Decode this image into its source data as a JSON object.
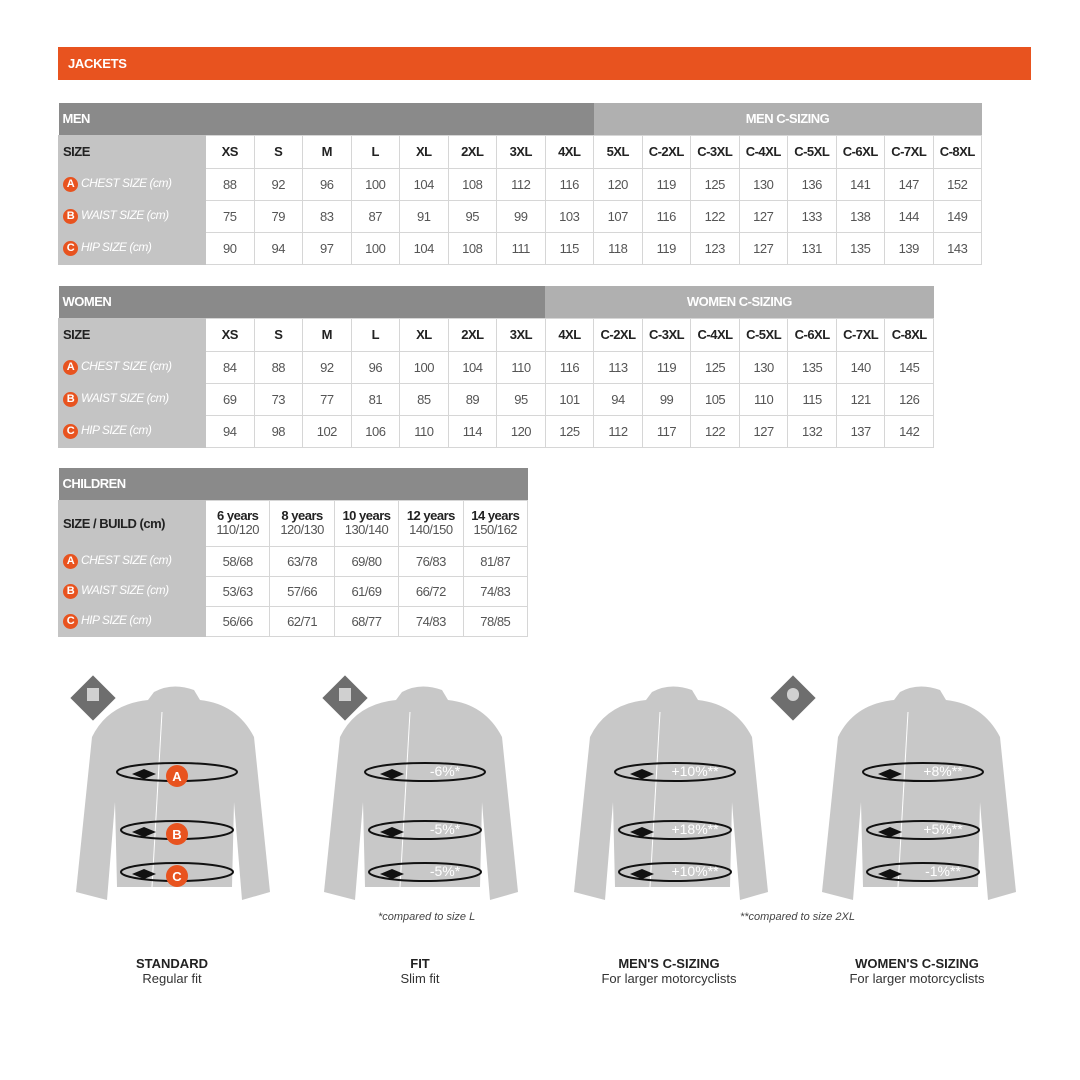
{
  "title": "JACKETS",
  "colors": {
    "accent": "#e8531f",
    "header_dark": "#8a8a8a",
    "header_light": "#b0b0b0",
    "label_bg": "#c4c4c4",
    "jacket": "#c8c8c8"
  },
  "row_labels": {
    "size": "SIZE",
    "chest": "CHEST SIZE (cm)",
    "waist": "WAIST SIZE (cm)",
    "hip": "HIP SIZE (cm)",
    "a": "A",
    "b": "B",
    "c": "C"
  },
  "men": {
    "title": "MEN",
    "c_title": "MEN C-SIZING",
    "sizes": [
      "XS",
      "S",
      "M",
      "L",
      "XL",
      "2XL",
      "3XL",
      "4XL",
      "5XL",
      "C-2XL",
      "C-3XL",
      "C-4XL",
      "C-5XL",
      "C-6XL",
      "C-7XL",
      "C-8XL"
    ],
    "chest": [
      "88",
      "92",
      "96",
      "100",
      "104",
      "108",
      "112",
      "116",
      "120",
      "119",
      "125",
      "130",
      "136",
      "141",
      "147",
      "152"
    ],
    "waist": [
      "75",
      "79",
      "83",
      "87",
      "91",
      "95",
      "99",
      "103",
      "107",
      "116",
      "122",
      "127",
      "133",
      "138",
      "144",
      "149"
    ],
    "hip": [
      "90",
      "94",
      "97",
      "100",
      "104",
      "108",
      "111",
      "115",
      "118",
      "119",
      "123",
      "127",
      "131",
      "135",
      "139",
      "143"
    ]
  },
  "women": {
    "title": "WOMEN",
    "c_title": "WOMEN C-SIZING",
    "sizes": [
      "XS",
      "S",
      "M",
      "L",
      "XL",
      "2XL",
      "3XL",
      "4XL",
      "C-2XL",
      "C-3XL",
      "C-4XL",
      "C-5XL",
      "C-6XL",
      "C-7XL",
      "C-8XL"
    ],
    "chest": [
      "84",
      "88",
      "92",
      "96",
      "100",
      "104",
      "110",
      "116",
      "113",
      "119",
      "125",
      "130",
      "135",
      "140",
      "145"
    ],
    "waist": [
      "69",
      "73",
      "77",
      "81",
      "85",
      "89",
      "95",
      "101",
      "94",
      "99",
      "105",
      "110",
      "115",
      "121",
      "126"
    ],
    "hip": [
      "94",
      "98",
      "102",
      "106",
      "110",
      "114",
      "120",
      "125",
      "112",
      "117",
      "122",
      "127",
      "132",
      "137",
      "142"
    ]
  },
  "children": {
    "title": "CHILDREN",
    "size_label": "SIZE / BUILD (cm)",
    "ages": [
      "6 years",
      "8 years",
      "10 years",
      "12 years",
      "14 years"
    ],
    "builds": [
      "110/120",
      "120/130",
      "130/140",
      "140/150",
      "150/162"
    ],
    "chest": [
      "58/68",
      "63/78",
      "69/80",
      "76/83",
      "81/87"
    ],
    "waist": [
      "53/63",
      "57/66",
      "61/69",
      "66/72",
      "74/83"
    ],
    "hip": [
      "56/66",
      "62/71",
      "68/77",
      "74/83",
      "78/85"
    ]
  },
  "fits": [
    {
      "title": "STANDARD",
      "subtitle": "Regular fit",
      "badge": "REGULAR",
      "marks": [
        "A",
        "B",
        "C"
      ]
    },
    {
      "title": "FIT",
      "subtitle": "Slim fit",
      "badge": "FIT",
      "marks": [
        "-6%*",
        "-5%*",
        "-5%*"
      ]
    },
    {
      "title": "MEN'S C-SIZING",
      "subtitle": "For larger motorcyclists",
      "badge": "C-SIZING",
      "marks": [
        "+10%**",
        "+18%**",
        "+10%**"
      ]
    },
    {
      "title": "WOMEN'S C-SIZING",
      "subtitle": "For larger motorcyclists",
      "marks": [
        "+8%**",
        "+5%**",
        "-1%**"
      ]
    }
  ],
  "notes": {
    "fit": "*compared to size L",
    "csizing": "**compared to size 2XL"
  }
}
